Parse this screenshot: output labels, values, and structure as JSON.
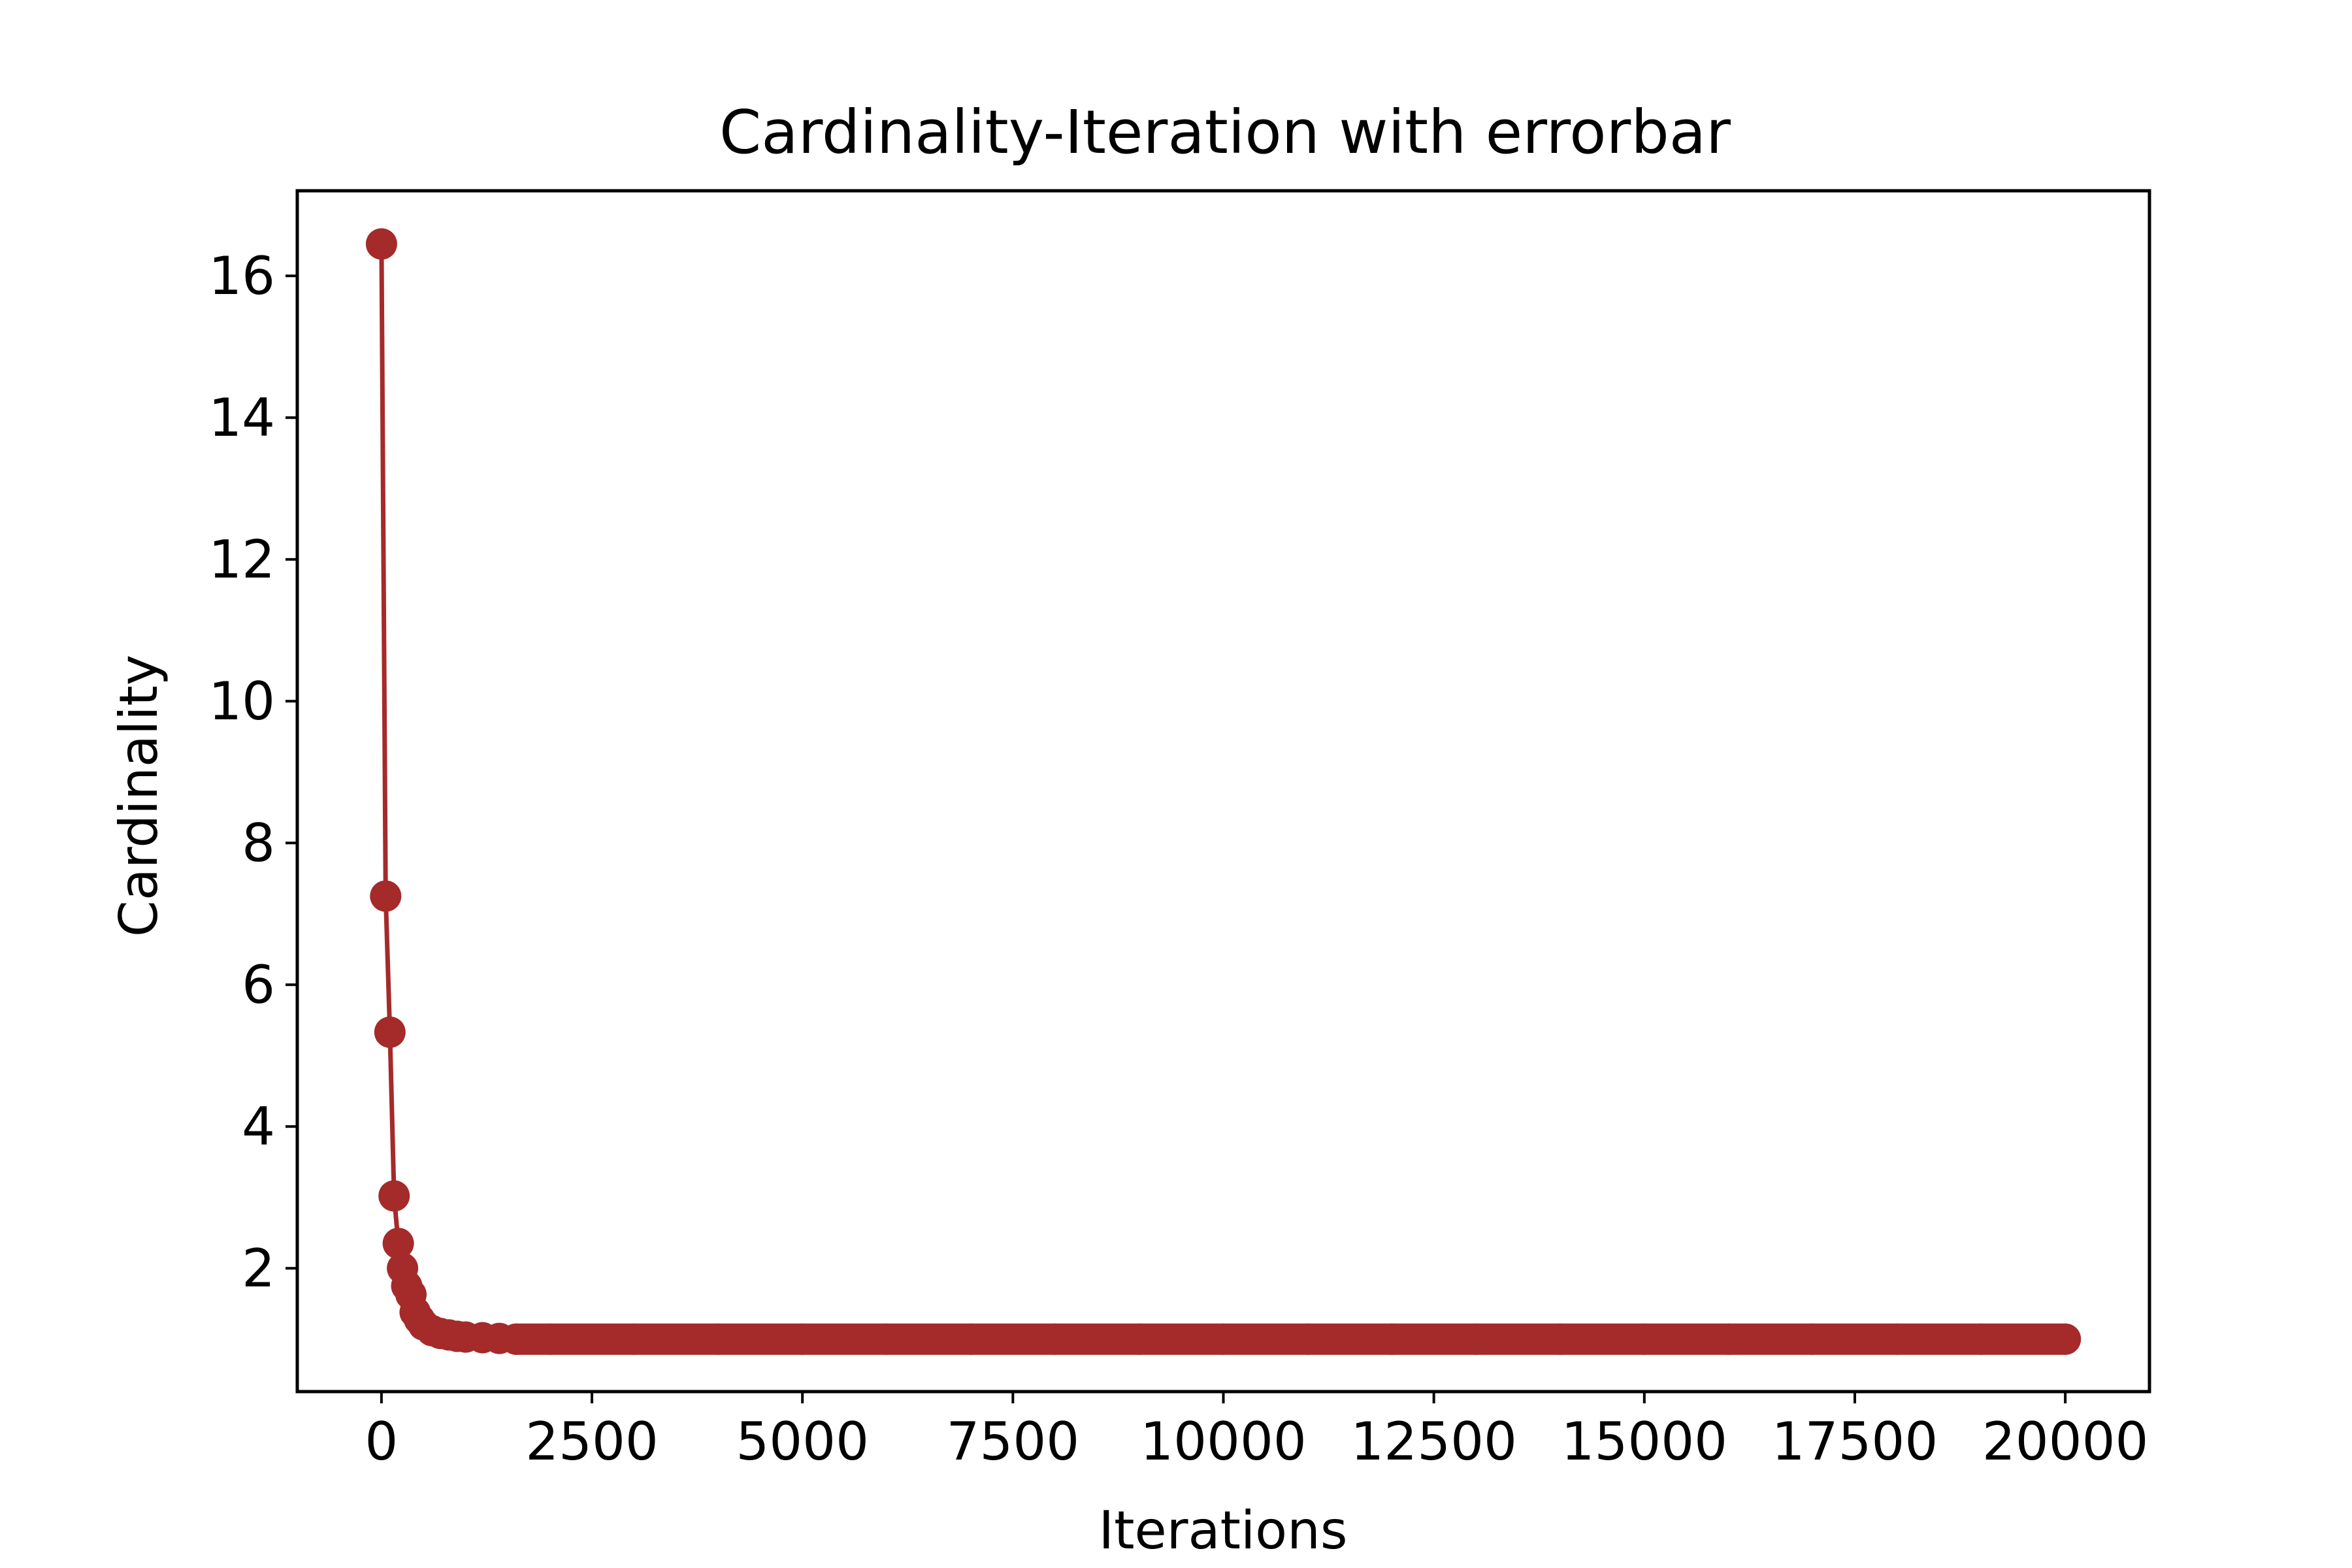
{
  "chart_data": {
    "type": "line",
    "title": "Cardinality-Iteration with errorbar",
    "xlabel": "Iterations",
    "ylabel": "Cardinality",
    "xlim": [
      -1000,
      21000
    ],
    "ylim": [
      0.26,
      17.2
    ],
    "xticks": [
      0,
      2500,
      5000,
      7500,
      10000,
      12500,
      15000,
      17500,
      20000
    ],
    "xtick_labels": [
      "0",
      "2500",
      "5000",
      "7500",
      "10000",
      "12500",
      "15000",
      "17500",
      "20000"
    ],
    "yticks": [
      2,
      4,
      6,
      8,
      10,
      12,
      14,
      16
    ],
    "ytick_labels": [
      "2",
      "4",
      "6",
      "8",
      "10",
      "12",
      "14",
      "16"
    ],
    "grid": false,
    "legend": "none",
    "color": "#a52a2a",
    "marker": "circle",
    "series": [
      {
        "x": [
          0,
          50,
          100,
          150,
          200,
          250,
          300,
          350,
          400,
          450,
          500,
          600,
          700,
          800,
          900,
          1000,
          1200,
          1400,
          1600,
          2000,
          3000,
          4000,
          5000,
          6000,
          7000,
          8000,
          9000,
          10000,
          11000,
          12000,
          13000,
          14000,
          15000,
          16000,
          17000,
          18000,
          19000,
          20000
        ],
        "y": [
          16.45,
          7.25,
          5.33,
          3.02,
          2.35,
          2.0,
          1.75,
          1.63,
          1.38,
          1.28,
          1.2,
          1.12,
          1.08,
          1.06,
          1.04,
          1.03,
          1.02,
          1.01,
          1.0,
          1.0,
          1.0,
          1.0,
          1.0,
          1.0,
          1.0,
          1.0,
          1.0,
          1.0,
          1.0,
          1.0,
          1.0,
          1.0,
          1.0,
          1.0,
          1.0,
          1.0,
          1.0,
          1.0
        ]
      }
    ]
  }
}
